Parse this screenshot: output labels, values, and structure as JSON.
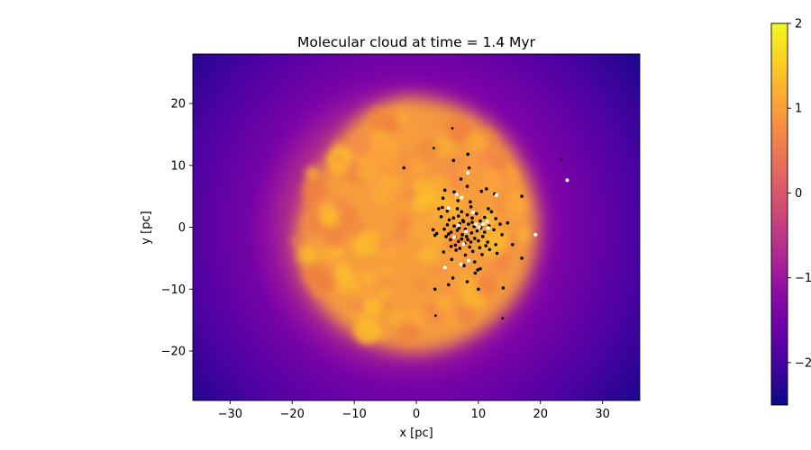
{
  "chart_data": {
    "type": "scatter",
    "title": "Molecular cloud at time = 1.4 Myr",
    "xlabel": "x [pc]",
    "ylabel": "y [pc]",
    "xlim": [
      -36,
      36
    ],
    "ylim": [
      -28,
      28
    ],
    "xticks": [
      -30,
      -20,
      -10,
      0,
      10,
      20,
      30
    ],
    "yticks": [
      -20,
      -10,
      0,
      10,
      20
    ],
    "grid": false,
    "background_image": {
      "type": "heatmap",
      "colormap": "plasma",
      "description_center": [
        -1,
        0
      ],
      "cloud_radius": 19
    },
    "colorbar": {
      "range": [
        -2.5,
        2
      ],
      "ticks": [
        2,
        1,
        0,
        -1,
        -2
      ],
      "tick_labels": [
        "2",
        "1",
        "0",
        "−1",
        "−2"
      ],
      "colormap": "plasma"
    },
    "series": [
      {
        "color": "#000000",
        "points": [
          [
            2.8,
            12.8
          ],
          [
            5.8,
            16.0
          ],
          [
            8.3,
            11.8
          ],
          [
            8.5,
            9.6
          ],
          [
            6.0,
            10.8
          ],
          [
            -2.0,
            9.6
          ],
          [
            23.3,
            11.0
          ],
          [
            7.2,
            7.8
          ],
          [
            11.3,
            6.2
          ],
          [
            10.5,
            5.8
          ],
          [
            17.0,
            5.0
          ],
          [
            4.6,
            6.0
          ],
          [
            8.2,
            6.6
          ],
          [
            6.1,
            5.7
          ],
          [
            3.6,
            3.0
          ],
          [
            4.2,
            3.2
          ],
          [
            5.0,
            2.6
          ],
          [
            6.6,
            3.0
          ],
          [
            8.8,
            3.3
          ],
          [
            11.6,
            3.0
          ],
          [
            12.6,
            5.4
          ],
          [
            4.0,
            1.7
          ],
          [
            5.3,
            1.2
          ],
          [
            6.0,
            1.5
          ],
          [
            6.8,
            1.8
          ],
          [
            7.5,
            1.1
          ],
          [
            8.2,
            2.0
          ],
          [
            9.0,
            1.5
          ],
          [
            9.7,
            2.2
          ],
          [
            10.3,
            1.0
          ],
          [
            11.0,
            1.6
          ],
          [
            12.8,
            1.4
          ],
          [
            13.5,
            0.5
          ],
          [
            14.7,
            0.7
          ],
          [
            2.7,
            -0.4
          ],
          [
            3.3,
            -1.0
          ],
          [
            4.5,
            -0.3
          ],
          [
            5.0,
            0.4
          ],
          [
            5.6,
            -0.8
          ],
          [
            6.1,
            0.2
          ],
          [
            6.6,
            -0.5
          ],
          [
            7.0,
            0.6
          ],
          [
            7.4,
            -1.2
          ],
          [
            7.9,
            -0.3
          ],
          [
            8.4,
            0.5
          ],
          [
            8.9,
            -0.9
          ],
          [
            9.3,
            0.1
          ],
          [
            9.8,
            -0.6
          ],
          [
            10.4,
            -0.1
          ],
          [
            11.0,
            -0.8
          ],
          [
            11.7,
            0.2
          ],
          [
            12.5,
            -0.4
          ],
          [
            3.0,
            -1.3
          ],
          [
            4.8,
            -1.5
          ],
          [
            5.5,
            -2.0
          ],
          [
            6.2,
            -1.6
          ],
          [
            6.8,
            -2.3
          ],
          [
            7.3,
            -1.9
          ],
          [
            7.8,
            -2.6
          ],
          [
            8.3,
            -2.0
          ],
          [
            8.8,
            -2.4
          ],
          [
            9.4,
            -1.8
          ],
          [
            10.0,
            -2.2
          ],
          [
            10.7,
            -1.5
          ],
          [
            11.5,
            -2.4
          ],
          [
            12.8,
            -2.8
          ],
          [
            15.5,
            -2.8
          ],
          [
            5.6,
            -3.1
          ],
          [
            7.0,
            -3.4
          ],
          [
            8.6,
            -3.2
          ],
          [
            10.2,
            -3.3
          ],
          [
            6.4,
            -3.7
          ],
          [
            9.1,
            -3.9
          ],
          [
            11.8,
            -3.6
          ],
          [
            4.4,
            -4.0
          ],
          [
            7.9,
            -4.5
          ],
          [
            10.6,
            -4.4
          ],
          [
            13.0,
            -4.2
          ],
          [
            5.7,
            -5.2
          ],
          [
            9.4,
            -5.6
          ],
          [
            17.0,
            -5.0
          ],
          [
            7.7,
            -6.2
          ],
          [
            9.9,
            -6.9
          ],
          [
            10.3,
            -6.7
          ],
          [
            9.5,
            -7.4
          ],
          [
            5.9,
            -8.2
          ],
          [
            8.2,
            -8.8
          ],
          [
            14.0,
            -9.8
          ],
          [
            10.0,
            -10.0
          ],
          [
            3.0,
            -10.0
          ],
          [
            5.2,
            -9.3
          ],
          [
            3.1,
            -14.3
          ],
          [
            13.9,
            -14.7
          ],
          [
            6.9,
            -0.1
          ],
          [
            7.6,
            0.9
          ],
          [
            8.1,
            -1.5
          ],
          [
            6.3,
            -2.9
          ],
          [
            9.0,
            0.8
          ],
          [
            10.8,
            0.4
          ],
          [
            5.2,
            -1.1
          ],
          [
            7.3,
            2.5
          ],
          [
            8.7,
            4.1
          ],
          [
            4.3,
            4.7
          ],
          [
            12.1,
            2.5
          ],
          [
            11.2,
            -3.0
          ],
          [
            13.8,
            -1.2
          ],
          [
            6.7,
            4.3
          ]
        ]
      },
      {
        "color": "#ffffff",
        "points": [
          [
            24.3,
            7.6
          ],
          [
            8.3,
            8.8
          ],
          [
            6.5,
            5.3
          ],
          [
            7.3,
            4.8
          ],
          [
            12.9,
            5.2
          ],
          [
            9.1,
            2.4
          ],
          [
            9.6,
            0.5
          ],
          [
            10.8,
            0.5
          ],
          [
            11.6,
            -0.1
          ],
          [
            8.0,
            -0.7
          ],
          [
            6.1,
            -1.6
          ],
          [
            7.6,
            -2.7
          ],
          [
            19.2,
            -1.2
          ],
          [
            4.6,
            -6.5
          ],
          [
            7.2,
            -6.0
          ],
          [
            8.4,
            -5.4
          ],
          [
            10.1,
            0.0
          ],
          [
            6.8,
            0.3
          ],
          [
            5.2,
            3.1
          ],
          [
            11.4,
            0.9
          ]
        ]
      }
    ]
  }
}
